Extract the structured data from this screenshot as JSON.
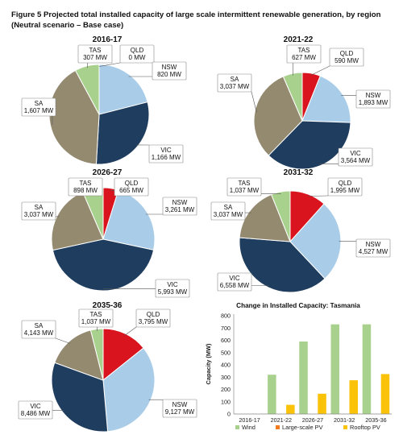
{
  "figure": {
    "title_line1": "Figure 5 Projected total installed capacity of large scale intermittent renewable generation, by region",
    "title_line2": "(Neutral scenario – Base case)"
  },
  "colors": {
    "Wind_green": "#a9d18e",
    "QLD": "#d9141e",
    "NSW": "#a9cde9",
    "VIC": "#1f3d5e",
    "SA": "#948a70",
    "TAS": "#a9d18e",
    "large_scale_pv": "#f47a20",
    "rooftop_pv": "#fbc20a"
  },
  "chart_data": [
    {
      "type": "pie",
      "title": "2016-17",
      "slices": [
        {
          "region": "QLD",
          "value_text": "0 MW",
          "value": 0
        },
        {
          "region": "NSW",
          "value_text": "820 MW",
          "value": 820
        },
        {
          "region": "VIC",
          "value_text": "1,166 MW",
          "value": 1166
        },
        {
          "region": "SA",
          "value_text": "1,607 MW",
          "value": 1607
        },
        {
          "region": "TAS",
          "value_text": "307 MW",
          "value": 307
        }
      ]
    },
    {
      "type": "pie",
      "title": "2021-22",
      "slices": [
        {
          "region": "QLD",
          "value_text": "590 MW",
          "value": 590
        },
        {
          "region": "NSW",
          "value_text": "1,893 MW",
          "value": 1893
        },
        {
          "region": "VIC",
          "value_text": "3,564 MW",
          "value": 3564
        },
        {
          "region": "SA",
          "value_text": "3,037 MW",
          "value": 3037
        },
        {
          "region": "TAS",
          "value_text": "627 MW",
          "value": 627
        }
      ]
    },
    {
      "type": "pie",
      "title": "2026-27",
      "slices": [
        {
          "region": "QLD",
          "value_text": "665 MW",
          "value": 665
        },
        {
          "region": "NSW",
          "value_text": "3,261 MW",
          "value": 3261
        },
        {
          "region": "VIC",
          "value_text": "5,993 MW",
          "value": 5993
        },
        {
          "region": "SA",
          "value_text": "3,037 MW",
          "value": 3037
        },
        {
          "region": "TAS",
          "value_text": "898 MW",
          "value": 898
        }
      ]
    },
    {
      "type": "pie",
      "title": "2031-32",
      "slices": [
        {
          "region": "QLD",
          "value_text": "1,995 MW",
          "value": 1995
        },
        {
          "region": "NSW",
          "value_text": "4,527 MW",
          "value": 4527
        },
        {
          "region": "VIC",
          "value_text": "6,558 MW",
          "value": 6558
        },
        {
          "region": "SA",
          "value_text": "3,037 MW",
          "value": 3037
        },
        {
          "region": "TAS",
          "value_text": "1,037 MW",
          "value": 1037
        }
      ]
    },
    {
      "type": "pie",
      "title": "2035-36",
      "slices": [
        {
          "region": "QLD",
          "value_text": "3,795 MW",
          "value": 3795
        },
        {
          "region": "NSW",
          "value_text": "9,127 MW",
          "value": 9127
        },
        {
          "region": "VIC",
          "value_text": "8,486 MW",
          "value": 8486
        },
        {
          "region": "SA",
          "value_text": "4,143 MW",
          "value": 4143
        },
        {
          "region": "TAS",
          "value_text": "1,037 MW",
          "value": 1037
        }
      ]
    },
    {
      "type": "bar",
      "title": "Change in Installed Capacity: Tasmania",
      "ylabel": "Capacity (MW)",
      "xlabel": "",
      "categories": [
        "2016-17",
        "2021-22",
        "2026-27",
        "2031-32",
        "2035-36"
      ],
      "ylim": [
        0,
        800
      ],
      "yticks": [
        "0",
        "100",
        "200",
        "300",
        "400",
        "500",
        "600",
        "700",
        "800"
      ],
      "grid": false,
      "legend_position": "bottom",
      "series": [
        {
          "name": "Wind",
          "values": [
            0,
            320,
            590,
            730,
            730
          ]
        },
        {
          "name": "Large-scale PV",
          "values": [
            0,
            0,
            0,
            0,
            0
          ]
        },
        {
          "name": "Rooftop PV",
          "values": [
            0,
            75,
            165,
            275,
            325
          ]
        }
      ]
    }
  ]
}
